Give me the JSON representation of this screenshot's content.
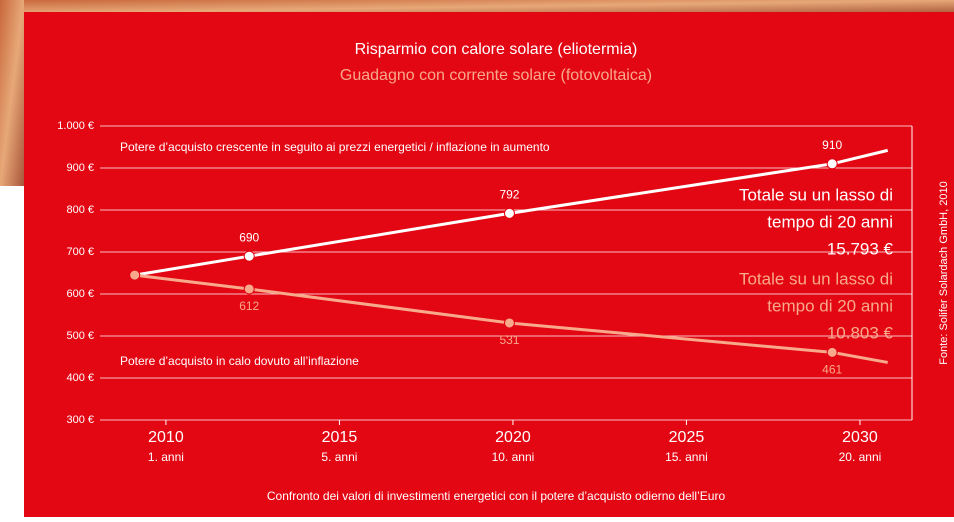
{
  "chart_data": {
    "type": "line",
    "title": "Risparmio con calore solare (eliotermia)",
    "subtitle": "Guadagno con corrente solare (fotovoltaica)",
    "caption": "Confronto dei valori di investimenti energetici con il potere d’acquisto odierno dell’Euro",
    "source": "Fonte: Solifer Solardach GmbH, 2010",
    "xlim": [
      2008.1,
      2031.5
    ],
    "xticks": [
      2010,
      2015,
      2020,
      2025,
      2030
    ],
    "x_tick_sublabels": [
      "1. anni",
      "5. anni",
      "10. anni",
      "15. anni",
      "20. anni"
    ],
    "ylim": [
      300,
      1000
    ],
    "yticks": [
      {
        "value": 300,
        "label": "300 €"
      },
      {
        "value": 400,
        "label": "400 €"
      },
      {
        "value": 500,
        "label": "500 €"
      },
      {
        "value": 600,
        "label": "600 €"
      },
      {
        "value": 700,
        "label": "700 €"
      },
      {
        "value": 800,
        "label": "800 €"
      },
      {
        "value": 900,
        "label": "900 €"
      },
      {
        "value": 1000,
        "label": "1.000 €"
      }
    ],
    "grid": true,
    "series": [
      {
        "name": "Risparmio con calore solare (eliotermia)",
        "color": "#ffffff",
        "x": [
          2009.1,
          2012.4,
          2019.9,
          2029.2,
          2030.8
        ],
        "values": [
          645,
          690,
          792,
          910,
          942
        ],
        "annotation": "Potere d’acquisto crescente in seguito ai prezzi energetici / inflazione in aumento",
        "total": [
          "Totale su un lasso di",
          "tempo di 20 anni",
          "15.793 €"
        ]
      },
      {
        "name": "Guadagno con corrente solare (fotovoltaica)",
        "color": "#f8a98b",
        "x": [
          2009.1,
          2012.4,
          2019.9,
          2029.2,
          2030.8
        ],
        "values": [
          645,
          612,
          531,
          461,
          437
        ],
        "annotation": "Potere d’acquisto in calo dovuto all’inflazione",
        "total": [
          "Totale su un lasso di",
          "tempo di 20 anni",
          "10.803 €"
        ]
      }
    ]
  }
}
